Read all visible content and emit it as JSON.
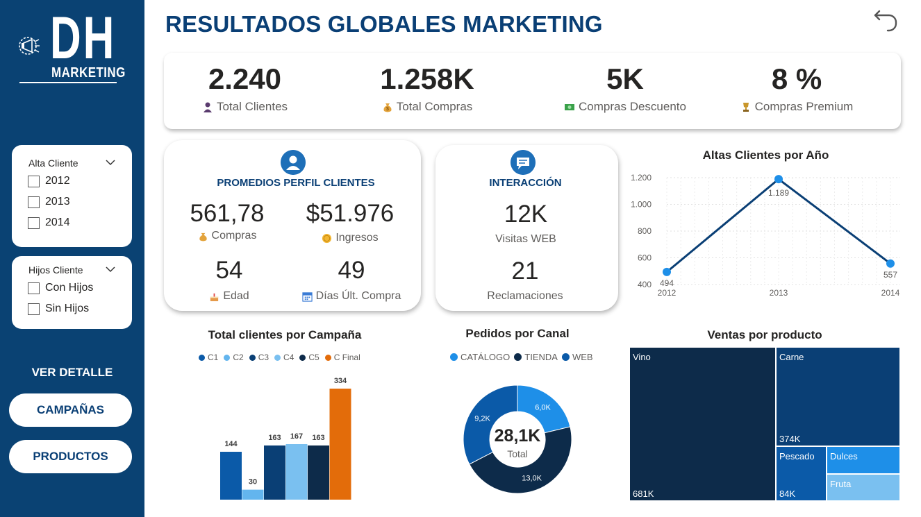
{
  "header": {
    "title": "RESULTADOS GLOBALES MARKETING"
  },
  "logo": {
    "main": "DH",
    "sub": "MARKETING"
  },
  "filters": {
    "alta": {
      "title": "Alta Cliente",
      "options": [
        "2012",
        "2013",
        "2014"
      ]
    },
    "hijos": {
      "title": "Hijos Cliente",
      "options": [
        "Con Hijos",
        "Sin Hijos"
      ]
    }
  },
  "sidebar": {
    "detail_heading": "VER DETALLE",
    "btn_campanas": "CAMPAÑAS",
    "btn_productos": "PRODUCTOS"
  },
  "kpis": [
    {
      "value": "2.240",
      "label": "Total Clientes",
      "icon": "person-icon"
    },
    {
      "value": "1.258K",
      "label": "Total Compras",
      "icon": "money-bag-icon"
    },
    {
      "value": "5K",
      "label": "Compras Descuento",
      "icon": "cash-icon"
    },
    {
      "value": "8 %",
      "label": "Compras Premium",
      "icon": "trophy-icon"
    }
  ],
  "promedios": {
    "title": "PROMEDIOS PERFIL CLIENTES",
    "metrics": [
      {
        "value": "561,78",
        "label": "Compras",
        "icon": "money-bag-icon"
      },
      {
        "value": "$51.976",
        "label": "Ingresos",
        "icon": "coin-icon"
      },
      {
        "value": "54",
        "label": "Edad",
        "icon": "cake-icon"
      },
      {
        "value": "49",
        "label": "Días Últ. Compra",
        "icon": "calendar-icon"
      }
    ]
  },
  "interaccion": {
    "title": "INTERACCIÓN",
    "metrics": [
      {
        "value": "12K",
        "label": "Visitas WEB"
      },
      {
        "value": "21",
        "label": "Reclamaciones"
      }
    ]
  },
  "colors": {
    "navy": "#0a4273",
    "title_blue": "#0a3f75",
    "c1": "#0b5aa8",
    "c2": "#63b5ee",
    "c3": "#0a3f75",
    "c4": "#7ac0f0",
    "c5": "#0d2b4a",
    "cfinal": "#e36c0a",
    "line": "#0a3f75",
    "point": "#1e8fe8"
  },
  "chart_data": [
    {
      "type": "line",
      "title": "Altas Clientes por Año",
      "x": [
        "2012",
        "2013",
        "2014"
      ],
      "y": [
        494,
        1189,
        557
      ],
      "data_labels": [
        "494",
        "1.189",
        "557"
      ],
      "y_ticks": [
        "1.200",
        "1.000",
        "800",
        "600",
        "400"
      ],
      "y_tick_values": [
        1200,
        1000,
        800,
        600,
        400
      ],
      "ylim": [
        400,
        1200
      ],
      "grid": true
    },
    {
      "type": "bar",
      "title": "Total clientes por Campaña",
      "legend": "top",
      "categories": [
        "C1",
        "C2",
        "C3",
        "C4",
        "C5",
        "C Final"
      ],
      "values": [
        144,
        30,
        163,
        167,
        163,
        334
      ],
      "ylim": [
        0,
        334
      ]
    },
    {
      "type": "pie",
      "title": "Pedidos por Canal",
      "legend": "top",
      "categories": [
        "CATÁLOGO",
        "TIENDA",
        "WEB"
      ],
      "values": [
        6.0,
        13.0,
        9.2
      ],
      "value_labels": [
        "6,0K",
        "13,0K",
        "9,2K"
      ],
      "center_value": "28,1K",
      "center_label": "Total"
    },
    {
      "type": "treemap",
      "title": "Ventas por producto",
      "categories": [
        "Vino",
        "Carne",
        "Pescado",
        "Dulces",
        "Fruta"
      ],
      "value_labels": [
        "681K",
        "374K",
        "84K",
        "",
        ""
      ]
    }
  ]
}
